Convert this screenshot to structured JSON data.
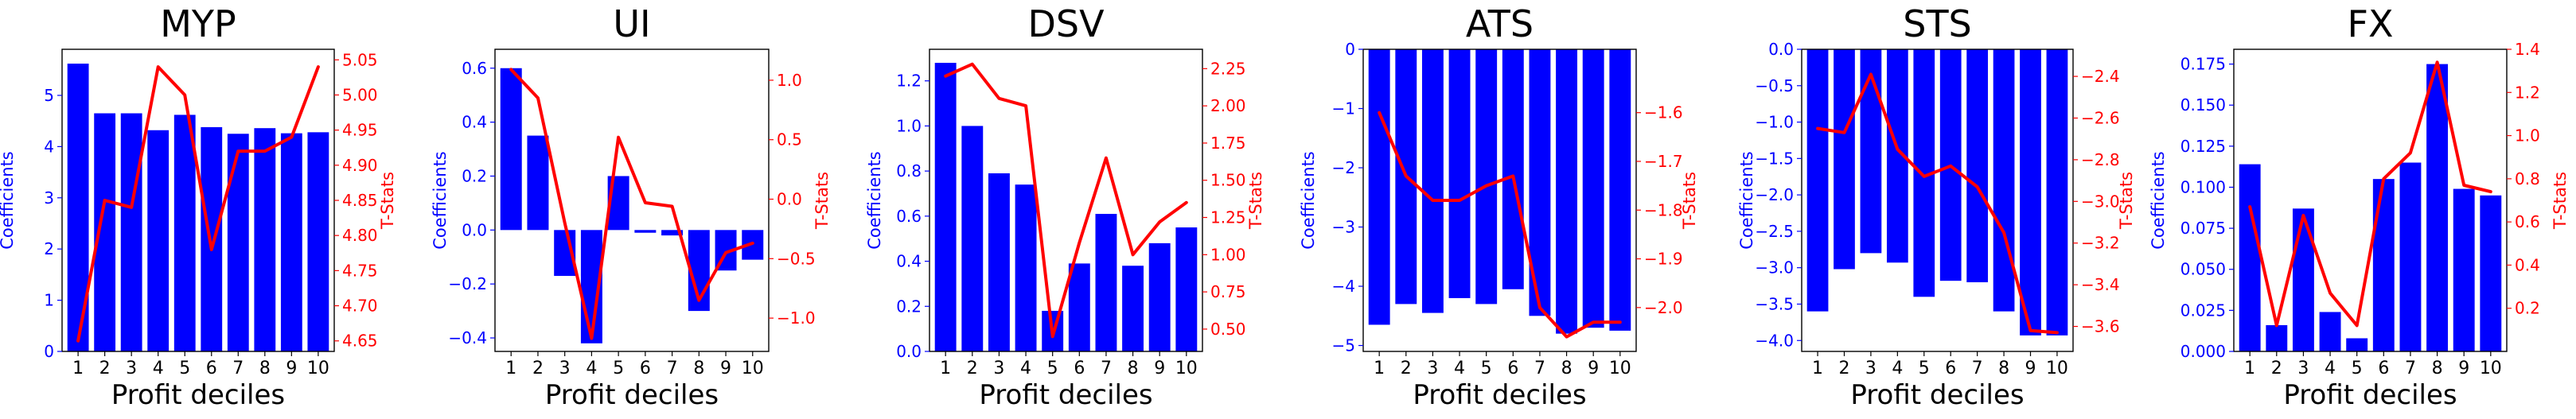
{
  "colors": {
    "bar": "#0000ff",
    "line": "#ff0000",
    "axis": "#000000",
    "left_label": "#0000ff",
    "right_label": "#ff0000"
  },
  "shared": {
    "xlabel": "Profit deciles",
    "ylabel_left": "Coefficients",
    "ylabel_right": "T-Stats"
  },
  "chart_data": [
    {
      "type": "bar",
      "title": "MYP",
      "categories": [
        "1",
        "2",
        "3",
        "4",
        "5",
        "6",
        "7",
        "8",
        "9",
        "10"
      ],
      "series": [
        {
          "values": [
            5.62,
            4.65,
            4.65,
            4.32,
            4.62,
            4.38,
            4.25,
            4.36,
            4.26,
            4.28
          ]
        },
        {
          "values": [
            4.65,
            4.85,
            4.84,
            5.04,
            5.0,
            4.78,
            4.92,
            4.92,
            4.94,
            5.04
          ]
        }
      ],
      "ylim_left": [
        0,
        5.9
      ],
      "yticks_left": [
        "0",
        "1",
        "2",
        "3",
        "4",
        "5"
      ],
      "ylim_right": [
        4.635,
        5.065
      ],
      "yticks_right": [
        "4.65",
        "4.70",
        "4.75",
        "4.80",
        "4.85",
        "4.90",
        "4.95",
        "5.00",
        "5.05"
      ]
    },
    {
      "type": "bar",
      "title": "UI",
      "categories": [
        "1",
        "2",
        "3",
        "4",
        "5",
        "6",
        "7",
        "8",
        "9",
        "10"
      ],
      "series": [
        {
          "values": [
            0.6,
            0.35,
            -0.17,
            -0.42,
            0.2,
            -0.01,
            -0.02,
            -0.3,
            -0.15,
            -0.11
          ]
        },
        {
          "values": [
            1.09,
            0.85,
            -0.2,
            -1.17,
            0.52,
            -0.03,
            -0.06,
            -0.85,
            -0.45,
            -0.37
          ]
        }
      ],
      "ylim_left": [
        -0.45,
        0.67
      ],
      "yticks_left": [
        "−0.4",
        "−0.2",
        "0.0",
        "0.2",
        "0.4",
        "0.6"
      ],
      "ylim_right": [
        -1.28,
        1.26
      ],
      "yticks_right": [
        "−1.0",
        "−0.5",
        "0.0",
        "0.5",
        "1.0"
      ]
    },
    {
      "type": "bar",
      "title": "DSV",
      "categories": [
        "1",
        "2",
        "3",
        "4",
        "5",
        "6",
        "7",
        "8",
        "9",
        "10"
      ],
      "series": [
        {
          "values": [
            1.28,
            1.0,
            0.79,
            0.74,
            0.18,
            0.39,
            0.61,
            0.38,
            0.48,
            0.55
          ]
        },
        {
          "values": [
            2.2,
            2.28,
            2.05,
            2.0,
            0.45,
            1.08,
            1.65,
            1.0,
            1.22,
            1.35
          ]
        }
      ],
      "ylim_left": [
        0,
        1.34
      ],
      "yticks_left": [
        "0.0",
        "0.2",
        "0.4",
        "0.6",
        "0.8",
        "1.0",
        "1.2"
      ],
      "ylim_right": [
        0.35,
        2.38
      ],
      "yticks_right": [
        "0.50",
        "0.75",
        "1.00",
        "1.25",
        "1.50",
        "1.75",
        "2.00",
        "2.25"
      ]
    },
    {
      "type": "bar",
      "title": "ATS",
      "categories": [
        "1",
        "2",
        "3",
        "4",
        "5",
        "6",
        "7",
        "8",
        "9",
        "10"
      ],
      "series": [
        {
          "values": [
            -4.65,
            -4.3,
            -4.45,
            -4.2,
            -4.3,
            -4.05,
            -4.5,
            -4.8,
            -4.7,
            -4.75
          ]
        },
        {
          "values": [
            -1.6,
            -1.73,
            -1.78,
            -1.78,
            -1.75,
            -1.73,
            -2.0,
            -2.06,
            -2.03,
            -2.03
          ]
        }
      ],
      "ylim_left": [
        -5.1,
        0
      ],
      "yticks_left": [
        "−5",
        "−4",
        "−3",
        "−2",
        "−1",
        "0"
      ],
      "ylim_right": [
        -2.09,
        -1.47
      ],
      "yticks_right": [
        "−2.0",
        "−1.9",
        "−1.8",
        "−1.7",
        "−1.6"
      ]
    },
    {
      "type": "bar",
      "title": "STS",
      "categories": [
        "1",
        "2",
        "3",
        "4",
        "5",
        "6",
        "7",
        "8",
        "9",
        "10"
      ],
      "series": [
        {
          "values": [
            -3.6,
            -3.02,
            -2.8,
            -2.93,
            -3.4,
            -3.18,
            -3.2,
            -3.6,
            -3.93,
            -3.93
          ]
        },
        {
          "values": [
            -2.65,
            -2.67,
            -2.39,
            -2.75,
            -2.88,
            -2.83,
            -2.93,
            -3.15,
            -3.62,
            -3.63
          ]
        }
      ],
      "ylim_left": [
        -4.15,
        0
      ],
      "yticks_left": [
        "−4.0",
        "−3.5",
        "−3.0",
        "−2.5",
        "−2.0",
        "−1.5",
        "−1.0",
        "−0.5",
        "0.0"
      ],
      "ylim_right": [
        -3.72,
        -2.27
      ],
      "yticks_right": [
        "−3.6",
        "−3.4",
        "−3.2",
        "−3.0",
        "−2.8",
        "−2.6",
        "−2.4"
      ]
    },
    {
      "type": "bar",
      "title": "FX",
      "categories": [
        "1",
        "2",
        "3",
        "4",
        "5",
        "6",
        "7",
        "8",
        "9",
        "10"
      ],
      "series": [
        {
          "values": [
            0.114,
            0.016,
            0.087,
            0.024,
            0.008,
            0.105,
            0.115,
            0.175,
            0.099,
            0.095
          ]
        },
        {
          "values": [
            0.67,
            0.12,
            0.63,
            0.27,
            0.12,
            0.8,
            0.92,
            1.34,
            0.77,
            0.74
          ]
        }
      ],
      "ylim_left": [
        0,
        0.184
      ],
      "yticks_left": [
        "0.000",
        "0.025",
        "0.050",
        "0.075",
        "0.100",
        "0.125",
        "0.150",
        "0.175"
      ],
      "ylim_right": [
        0.0,
        1.4
      ],
      "yticks_right": [
        "0.2",
        "0.4",
        "0.6",
        "0.8",
        "1.0",
        "1.2",
        "1.4"
      ]
    }
  ]
}
